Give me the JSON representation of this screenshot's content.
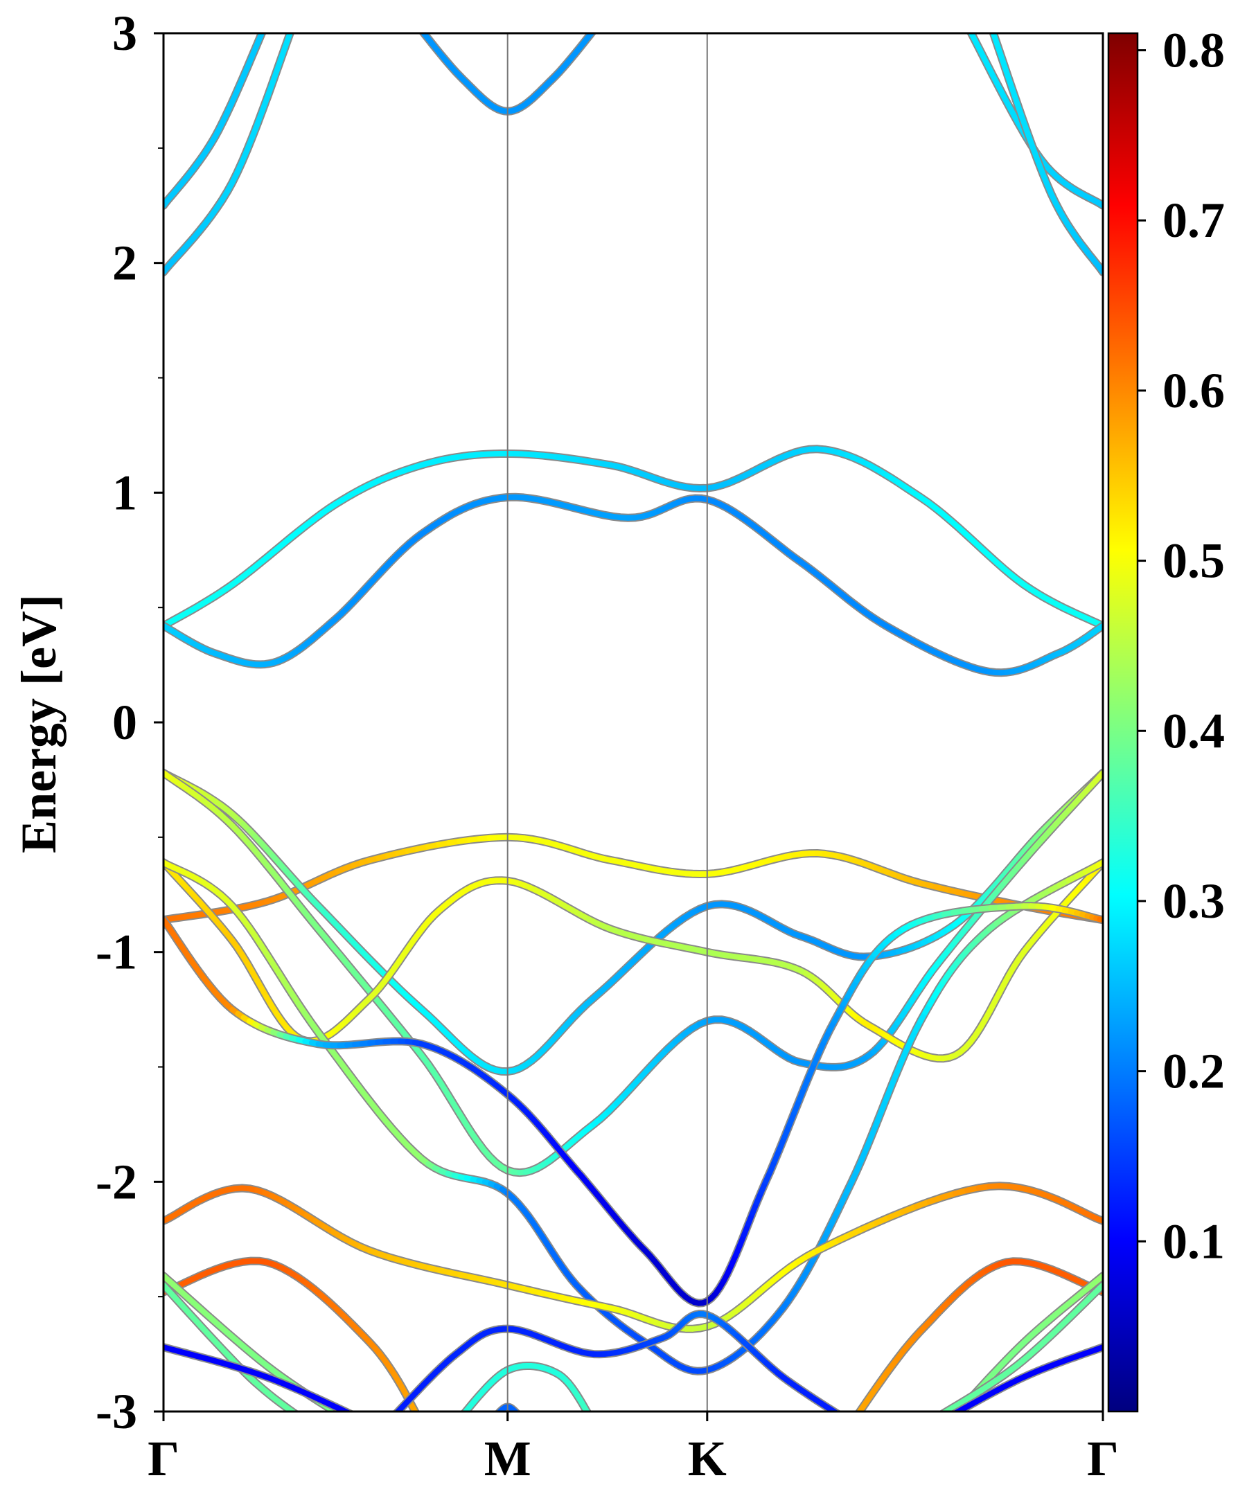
{
  "chart_data": {
    "type": "line",
    "title": "",
    "ylabel": "Energy [eV]",
    "xlabel": "",
    "ylim": [
      -3,
      3
    ],
    "yticks": [
      -3,
      -2,
      -1,
      0,
      1,
      2,
      3
    ],
    "x_range": [
      0,
      2.73
    ],
    "high_symmetry_points": [
      {
        "label": "Γ",
        "x": 0
      },
      {
        "label": "M",
        "x": 1.0
      },
      {
        "label": "K",
        "x": 1.58
      },
      {
        "label": "Γ",
        "x": 2.73
      }
    ],
    "grid": false,
    "colormap": "jet",
    "colorbar": {
      "vmin": 0.0,
      "vmax": 0.81,
      "ticks": [
        0.1,
        0.2,
        0.3,
        0.4,
        0.5,
        0.6,
        0.7,
        0.8
      ],
      "tick_labels": [
        "0.1",
        "0.2",
        "0.3",
        "0.4",
        "0.5",
        "0.6",
        "0.7",
        "0.8"
      ]
    },
    "series": [
      {
        "points": [
          [
            0,
            2.25,
            0.26
          ],
          [
            0.15,
            2.55,
            0.26
          ],
          [
            0.3,
            3.05,
            0.26
          ]
        ]
      },
      {
        "points": [
          [
            0,
            1.96,
            0.25
          ],
          [
            0.2,
            2.35,
            0.27
          ],
          [
            0.38,
            3.05,
            0.28
          ]
        ]
      },
      {
        "points": [
          [
            0.73,
            3.05,
            0.22
          ],
          [
            0.87,
            2.8,
            0.22
          ],
          [
            1.0,
            2.66,
            0.22
          ],
          [
            1.13,
            2.8,
            0.22
          ],
          [
            1.27,
            3.05,
            0.22
          ]
        ]
      },
      {
        "points": [
          [
            2.33,
            3.05,
            0.29
          ],
          [
            2.55,
            2.45,
            0.27
          ],
          [
            2.73,
            2.25,
            0.26
          ]
        ]
      },
      {
        "points": [
          [
            2.4,
            3.05,
            0.29
          ],
          [
            2.58,
            2.3,
            0.27
          ],
          [
            2.73,
            1.96,
            0.25
          ]
        ]
      },
      {
        "points": [
          [
            0,
            0.42,
            0.31
          ],
          [
            0.2,
            0.6,
            0.31
          ],
          [
            0.5,
            0.95,
            0.3
          ],
          [
            0.75,
            1.12,
            0.29
          ],
          [
            1.0,
            1.17,
            0.29
          ],
          [
            1.3,
            1.12,
            0.27
          ],
          [
            1.58,
            1.02,
            0.25
          ],
          [
            1.9,
            1.19,
            0.27
          ],
          [
            2.2,
            0.98,
            0.3
          ],
          [
            2.5,
            0.6,
            0.31
          ],
          [
            2.73,
            0.42,
            0.31
          ]
        ]
      },
      {
        "points": [
          [
            0,
            0.42,
            0.27
          ],
          [
            0.15,
            0.3,
            0.25
          ],
          [
            0.32,
            0.26,
            0.24
          ],
          [
            0.5,
            0.45,
            0.22
          ],
          [
            0.75,
            0.82,
            0.21
          ],
          [
            1.0,
            0.98,
            0.22
          ],
          [
            1.35,
            0.89,
            0.23
          ],
          [
            1.58,
            0.97,
            0.21
          ],
          [
            1.85,
            0.7,
            0.21
          ],
          [
            2.1,
            0.42,
            0.21
          ],
          [
            2.4,
            0.22,
            0.22
          ],
          [
            2.6,
            0.3,
            0.25
          ],
          [
            2.73,
            0.42,
            0.27
          ]
        ]
      },
      {
        "points": [
          [
            0,
            -0.86,
            0.62
          ],
          [
            0.3,
            -0.78,
            0.6
          ],
          [
            0.6,
            -0.6,
            0.56
          ],
          [
            1.0,
            -0.5,
            0.5
          ],
          [
            1.3,
            -0.6,
            0.5
          ],
          [
            1.58,
            -0.66,
            0.5
          ],
          [
            1.9,
            -0.57,
            0.52
          ],
          [
            2.2,
            -0.7,
            0.56
          ],
          [
            2.5,
            -0.8,
            0.6
          ],
          [
            2.73,
            -0.86,
            0.62
          ]
        ]
      },
      {
        "points": [
          [
            0,
            -0.22,
            0.5
          ],
          [
            0.2,
            -0.4,
            0.45
          ],
          [
            0.45,
            -0.8,
            0.35
          ],
          [
            0.75,
            -1.25,
            0.3
          ],
          [
            1.0,
            -1.52,
            0.28
          ],
          [
            1.25,
            -1.2,
            0.25
          ],
          [
            1.58,
            -0.8,
            0.22
          ],
          [
            1.85,
            -0.93,
            0.22
          ],
          [
            2.05,
            -1.02,
            0.22
          ],
          [
            2.3,
            -0.88,
            0.3
          ],
          [
            2.55,
            -0.48,
            0.4
          ],
          [
            2.73,
            -0.22,
            0.48
          ]
        ]
      },
      {
        "points": [
          [
            0,
            -0.22,
            0.5
          ],
          [
            0.2,
            -0.45,
            0.45
          ],
          [
            0.45,
            -0.9,
            0.4
          ],
          [
            0.75,
            -1.45,
            0.37
          ],
          [
            1.0,
            -1.95,
            0.38
          ],
          [
            1.25,
            -1.75,
            0.3
          ],
          [
            1.58,
            -1.3,
            0.23
          ],
          [
            1.85,
            -1.48,
            0.22
          ],
          [
            2.05,
            -1.45,
            0.23
          ],
          [
            2.25,
            -1.05,
            0.31
          ],
          [
            2.5,
            -0.6,
            0.4
          ],
          [
            2.73,
            -0.22,
            0.48
          ]
        ]
      },
      {
        "points": [
          [
            0,
            -0.61,
            0.52
          ],
          [
            0.2,
            -0.95,
            0.55
          ],
          [
            0.4,
            -1.38,
            0.52
          ],
          [
            0.6,
            -1.2,
            0.48
          ],
          [
            0.8,
            -0.82,
            0.5
          ],
          [
            1.0,
            -0.69,
            0.5
          ],
          [
            1.3,
            -0.9,
            0.45
          ],
          [
            1.58,
            -1.0,
            0.44
          ],
          [
            1.85,
            -1.08,
            0.45
          ],
          [
            2.05,
            -1.32,
            0.52
          ],
          [
            2.3,
            -1.45,
            0.48
          ],
          [
            2.5,
            -1.0,
            0.48
          ],
          [
            2.73,
            -0.61,
            0.52
          ]
        ]
      },
      {
        "points": [
          [
            0,
            -0.61,
            0.5
          ],
          [
            0.2,
            -0.8,
            0.48
          ],
          [
            0.45,
            -1.35,
            0.42
          ],
          [
            0.75,
            -1.9,
            0.42
          ],
          [
            1.0,
            -2.05,
            0.2
          ],
          [
            1.2,
            -2.45,
            0.18
          ],
          [
            1.4,
            -2.7,
            0.16
          ],
          [
            1.58,
            -2.82,
            0.16
          ],
          [
            1.8,
            -2.55,
            0.2
          ],
          [
            2.0,
            -2.0,
            0.25
          ],
          [
            2.2,
            -1.3,
            0.28
          ],
          [
            2.4,
            -0.9,
            0.38
          ],
          [
            2.73,
            -0.61,
            0.5
          ]
        ]
      },
      {
        "points": [
          [
            0,
            -0.86,
            0.62
          ],
          [
            0.2,
            -1.25,
            0.6
          ],
          [
            0.45,
            -1.4,
            0.25
          ],
          [
            0.75,
            -1.4,
            0.15
          ],
          [
            1.0,
            -1.62,
            0.13
          ],
          [
            1.2,
            -1.95,
            0.1
          ],
          [
            1.4,
            -2.3,
            0.07
          ],
          [
            1.58,
            -2.52,
            0.06
          ],
          [
            1.75,
            -2.0,
            0.15
          ],
          [
            1.95,
            -1.3,
            0.22
          ],
          [
            2.15,
            -0.9,
            0.3
          ],
          [
            2.5,
            -0.8,
            0.45
          ],
          [
            2.73,
            -0.86,
            0.62
          ]
        ]
      },
      {
        "points": [
          [
            0,
            -2.17,
            0.62
          ],
          [
            0.25,
            -2.03,
            0.62
          ],
          [
            0.6,
            -2.3,
            0.56
          ],
          [
            1.0,
            -2.45,
            0.53
          ],
          [
            1.3,
            -2.55,
            0.5
          ],
          [
            1.58,
            -2.63,
            0.46
          ],
          [
            1.9,
            -2.3,
            0.52
          ],
          [
            2.4,
            -2.02,
            0.6
          ],
          [
            2.73,
            -2.17,
            0.62
          ]
        ]
      },
      {
        "points": [
          [
            0,
            -2.48,
            0.63
          ],
          [
            0.3,
            -2.35,
            0.64
          ],
          [
            0.6,
            -2.7,
            0.6
          ],
          [
            0.75,
            -3.05,
            0.57
          ]
        ]
      },
      {
        "points": [
          [
            2.0,
            -3.05,
            0.57
          ],
          [
            2.2,
            -2.65,
            0.6
          ],
          [
            2.45,
            -2.35,
            0.64
          ],
          [
            2.73,
            -2.48,
            0.63
          ]
        ]
      },
      {
        "points": [
          [
            0,
            -2.41,
            0.42
          ],
          [
            0.3,
            -2.8,
            0.4
          ],
          [
            0.55,
            -3.05,
            0.4
          ]
        ]
      },
      {
        "points": [
          [
            0,
            -2.45,
            0.38
          ],
          [
            0.25,
            -2.85,
            0.38
          ],
          [
            0.42,
            -3.05,
            0.38
          ]
        ]
      },
      {
        "points": [
          [
            2.28,
            -3.05,
            0.4
          ],
          [
            2.5,
            -2.7,
            0.4
          ],
          [
            2.73,
            -2.41,
            0.42
          ]
        ]
      },
      {
        "points": [
          [
            2.22,
            -3.05,
            0.38
          ],
          [
            2.48,
            -2.8,
            0.38
          ],
          [
            2.73,
            -2.45,
            0.38
          ]
        ]
      },
      {
        "points": [
          [
            0,
            -2.72,
            0.1
          ],
          [
            0.3,
            -2.85,
            0.1
          ],
          [
            0.6,
            -3.05,
            0.1
          ]
        ]
      },
      {
        "points": [
          [
            0.65,
            -3.05,
            0.12
          ],
          [
            0.85,
            -2.75,
            0.13
          ],
          [
            1.0,
            -2.64,
            0.13
          ],
          [
            1.25,
            -2.75,
            0.13
          ],
          [
            1.45,
            -2.68,
            0.16
          ],
          [
            1.58,
            -2.58,
            0.2
          ],
          [
            1.8,
            -2.85,
            0.13
          ],
          [
            2.0,
            -3.05,
            0.12
          ]
        ]
      },
      {
        "points": [
          [
            2.25,
            -3.05,
            0.1
          ],
          [
            2.5,
            -2.85,
            0.1
          ],
          [
            2.73,
            -2.72,
            0.1
          ]
        ]
      },
      {
        "points": [
          [
            0.85,
            -3.05,
            0.33
          ],
          [
            1.0,
            -2.82,
            0.33
          ],
          [
            1.15,
            -2.84,
            0.33
          ],
          [
            1.25,
            -3.05,
            0.36
          ]
        ]
      },
      {
        "points": [
          [
            0.95,
            -3.05,
            0.18
          ],
          [
            1.0,
            -2.98,
            0.18
          ],
          [
            1.05,
            -3.05,
            0.18
          ]
        ]
      }
    ]
  }
}
